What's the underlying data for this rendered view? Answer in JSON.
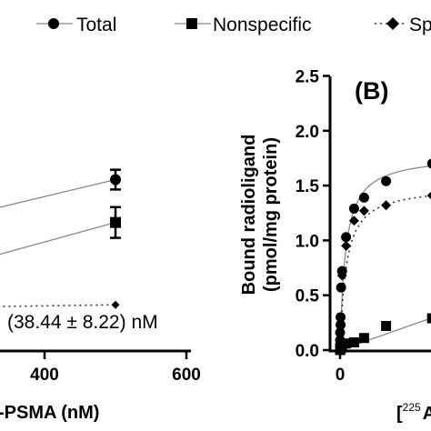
{
  "legend": {
    "items": [
      {
        "label": "Total",
        "marker": "circle",
        "line": "solid"
      },
      {
        "label": "Nonspecific",
        "marker": "square",
        "line": "solid"
      },
      {
        "label": "Sp",
        "marker": "diamond",
        "line": "dotted"
      }
    ]
  },
  "chart_data": [
    {
      "type": "scatter",
      "panel": "A",
      "xlabel": "-PSMA (nM)",
      "xticks": [
        "400",
        "600"
      ],
      "xlim": [
        280,
        600
      ],
      "ylim": [
        0,
        2.5
      ],
      "annotation": "(38.44 ± 8.22) nM",
      "series": [
        {
          "name": "Total",
          "marker": "circle",
          "points": [
            {
              "x": 500,
              "y": 1.56,
              "err": 0.09
            }
          ],
          "fit": [
            {
              "x": 280,
              "y": 1.22
            },
            {
              "x": 500,
              "y": 1.56
            }
          ]
        },
        {
          "name": "Nonspecific",
          "marker": "square",
          "points": [
            {
              "x": 500,
              "y": 1.17,
              "err": 0.14
            }
          ],
          "fit": [
            {
              "x": 280,
              "y": 0.78
            },
            {
              "x": 500,
              "y": 1.17
            }
          ]
        },
        {
          "name": "Sp",
          "marker": "diamond",
          "points": [
            {
              "x": 500,
              "y": 0.42
            }
          ],
          "fit": [
            {
              "x": 280,
              "y": 0.4
            },
            {
              "x": 500,
              "y": 0.42
            }
          ]
        }
      ]
    },
    {
      "type": "scatter",
      "panel": "B",
      "title": "(B)",
      "ylabel": "Bound radioligand\n(pmol/mg protein)",
      "xlabel": "[225 A",
      "xlabel_superscript": "225",
      "xlabel_text": "A",
      "xticks": [
        "0"
      ],
      "yticks": [
        "0.0",
        "0.5",
        "1.0",
        "1.5",
        "2.0",
        "2.5"
      ],
      "xlim": [
        -0.6,
        12
      ],
      "ylim": [
        0,
        2.5
      ],
      "series": [
        {
          "name": "Total",
          "marker": "circle",
          "points": [
            {
              "x": 0.0,
              "y": 0.05
            },
            {
              "x": 0.0,
              "y": 0.09
            },
            {
              "x": 0.0,
              "y": 0.16
            },
            {
              "x": 0.05,
              "y": 0.23
            },
            {
              "x": 0.05,
              "y": 0.3
            },
            {
              "x": 0.1,
              "y": 0.57
            },
            {
              "x": 0.2,
              "y": 0.72
            },
            {
              "x": 0.6,
              "y": 1.03
            },
            {
              "x": 1.4,
              "y": 1.29
            },
            {
              "x": 2.4,
              "y": 1.39
            },
            {
              "x": 4.6,
              "y": 1.54
            },
            {
              "x": 9.2,
              "y": 1.7
            }
          ]
        },
        {
          "name": "Nonspecific",
          "marker": "square",
          "points": [
            {
              "x": 0.0,
              "y": 0.0
            },
            {
              "x": 0.05,
              "y": 0.01
            },
            {
              "x": 0.1,
              "y": 0.02
            },
            {
              "x": 0.2,
              "y": 0.03
            },
            {
              "x": 0.6,
              "y": 0.06
            },
            {
              "x": 1.4,
              "y": 0.07
            },
            {
              "x": 2.4,
              "y": 0.11
            },
            {
              "x": 4.6,
              "y": 0.22
            },
            {
              "x": 9.2,
              "y": 0.29
            }
          ]
        },
        {
          "name": "Sp",
          "marker": "diamond",
          "points": [
            {
              "x": 0.05,
              "y": 0.22
            },
            {
              "x": 0.2,
              "y": 0.68
            },
            {
              "x": 0.6,
              "y": 0.95
            },
            {
              "x": 1.4,
              "y": 1.18
            },
            {
              "x": 2.4,
              "y": 1.27
            },
            {
              "x": 4.6,
              "y": 1.32
            },
            {
              "x": 9.2,
              "y": 1.41
            }
          ]
        }
      ],
      "fits": {
        "Total": {
          "bmax": 1.78,
          "kd": 0.55
        },
        "Sp": {
          "bmax": 1.5,
          "kd": 0.6
        },
        "Nonspecific_slope": 0.032
      }
    }
  ]
}
